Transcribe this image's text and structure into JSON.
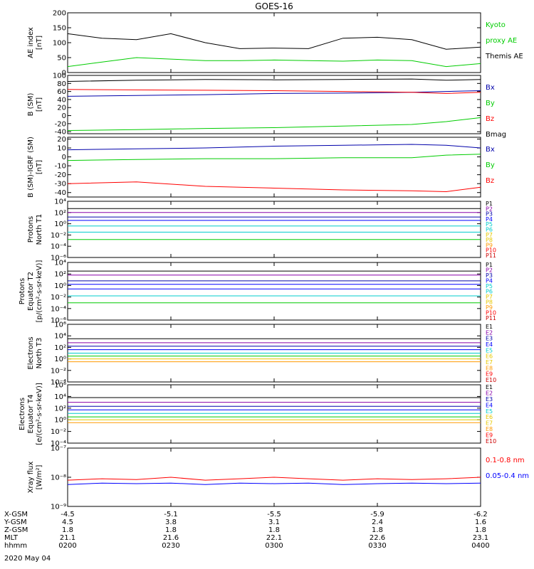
{
  "title": "GOES-16",
  "colors": {
    "black": "#000000",
    "red": "#ff0000",
    "green": "#00cc00",
    "blue": "#0000ff",
    "navy": "#0000aa",
    "cyan": "#00cccc",
    "yellow": "#e6c800",
    "orange": "#ff9900",
    "purple": "#8800aa",
    "darkred": "#cc0000"
  },
  "chart_data": [
    {
      "type": "line",
      "name": "ae",
      "ylabel": [
        "AE index",
        "[nT]"
      ],
      "ylim": [
        0,
        200
      ],
      "yticks": [
        0,
        50,
        100,
        150,
        200
      ],
      "ytick_labels": [
        "0",
        "50",
        "100",
        "150",
        "200"
      ],
      "x": [
        0,
        10,
        20,
        30,
        40,
        50,
        60,
        70,
        80,
        90,
        100,
        110,
        120
      ],
      "series": [
        {
          "name": "Themis AE",
          "color": "black",
          "values": [
            130,
            115,
            110,
            130,
            100,
            80,
            82,
            80,
            115,
            118,
            110,
            78,
            85
          ]
        },
        {
          "name": "Kyoto proxy AE",
          "color": "green",
          "values": [
            20,
            35,
            50,
            45,
            40,
            40,
            42,
            40,
            38,
            42,
            40,
            20,
            30
          ]
        }
      ],
      "legend": [
        {
          "text": "Kyoto",
          "color": "green"
        },
        {
          "text": "proxy AE",
          "color": "green"
        },
        {
          "text": "Themis AE",
          "color": "black"
        }
      ]
    },
    {
      "type": "line",
      "name": "bsm",
      "ylabel": [
        "B (SM)",
        "[nT]"
      ],
      "ylim": [
        -45,
        100
      ],
      "yticks": [
        -40,
        -20,
        0,
        20,
        40,
        60,
        80,
        100
      ],
      "ytick_labels": [
        "-40",
        "-20",
        "0",
        "20",
        "40",
        "60",
        "80",
        "100"
      ],
      "x": [
        0,
        20,
        40,
        60,
        80,
        100,
        110,
        120
      ],
      "series": [
        {
          "name": "Bmag",
          "color": "black",
          "values": [
            85,
            88,
            90,
            89,
            90,
            91,
            88,
            90
          ]
        },
        {
          "name": "Bx",
          "color": "navy",
          "values": [
            48,
            50,
            52,
            55,
            56,
            58,
            60,
            62
          ]
        },
        {
          "name": "Bz",
          "color": "red",
          "values": [
            65,
            64,
            63,
            62,
            60,
            58,
            55,
            58
          ]
        },
        {
          "name": "By",
          "color": "green",
          "values": [
            -37,
            -35,
            -32,
            -30,
            -26,
            -22,
            -15,
            -5
          ]
        }
      ],
      "legend": [
        {
          "text": "Bx",
          "color": "navy"
        },
        {
          "text": "By",
          "color": "green"
        },
        {
          "text": "Bz",
          "color": "red"
        },
        {
          "text": "Bmag",
          "color": "black"
        }
      ]
    },
    {
      "type": "line",
      "name": "bigrf",
      "ylabel": [
        "B (SM)-IGRF (SM)",
        "[nT]"
      ],
      "ylim": [
        -45,
        22
      ],
      "yticks": [
        -40,
        -30,
        -20,
        -10,
        0,
        10,
        20
      ],
      "ytick_labels": [
        "-40",
        "-30",
        "-20",
        "-10",
        "0",
        "10",
        "20"
      ],
      "x": [
        0,
        20,
        40,
        60,
        80,
        100,
        110,
        120
      ],
      "series": [
        {
          "name": "Bx",
          "color": "navy",
          "values": [
            8,
            9,
            10,
            12,
            13,
            14,
            13,
            10
          ]
        },
        {
          "name": "By",
          "color": "green",
          "values": [
            -4,
            -3,
            -2,
            -2,
            -1,
            -1,
            2,
            3
          ]
        },
        {
          "name": "Bz",
          "color": "red",
          "values": [
            -30,
            -28,
            -33,
            -35,
            -37,
            -38,
            -39,
            -34
          ]
        }
      ],
      "legend": [
        {
          "text": "Bx",
          "color": "navy"
        },
        {
          "text": "By",
          "color": "green"
        },
        {
          "text": "Bz",
          "color": "red"
        }
      ]
    },
    {
      "type": "line",
      "name": "pn",
      "yscale": "log",
      "ylabel": [
        "Protons",
        "North T1"
      ],
      "ylim": [
        -6,
        4
      ],
      "yticks": [
        -6,
        -4,
        -2,
        0,
        2,
        4
      ],
      "ytick_labels": [
        "10⁻⁶",
        "10⁻⁴",
        "10⁻²",
        "10⁰",
        "10²",
        "10⁴"
      ],
      "x": [
        0,
        120
      ],
      "series": [
        {
          "name": "P1",
          "color": "black",
          "values": [
            2.7,
            2.7
          ]
        },
        {
          "name": "P2",
          "color": "purple",
          "values": [
            2.0,
            2.0
          ]
        },
        {
          "name": "P3",
          "color": "navy",
          "values": [
            1.2,
            1.2
          ]
        },
        {
          "name": "P4",
          "color": "blue",
          "values": [
            0.6,
            0.6
          ]
        },
        {
          "name": "P5",
          "color": "cyan",
          "values": [
            -0.4,
            -0.4
          ]
        },
        {
          "name": "P6",
          "color": "cyan",
          "values": [
            -1.5,
            -1.5
          ]
        },
        {
          "name": "P7",
          "color": "green",
          "values": [
            -2.8,
            -2.8
          ]
        }
      ],
      "legend": [
        {
          "text": "P1",
          "color": "black"
        },
        {
          "text": "P2",
          "color": "purple"
        },
        {
          "text": "P3",
          "color": "navy"
        },
        {
          "text": "P4",
          "color": "blue"
        },
        {
          "text": "P5",
          "color": "cyan"
        },
        {
          "text": "P6",
          "color": "cyan"
        },
        {
          "text": "P7",
          "color": "yellow"
        },
        {
          "text": "P8",
          "color": "yellow"
        },
        {
          "text": "P9",
          "color": "orange"
        },
        {
          "text": "P10",
          "color": "red"
        },
        {
          "text": "P11",
          "color": "darkred"
        }
      ]
    },
    {
      "type": "line",
      "name": "pe",
      "yscale": "log",
      "ylabel": [
        "Protons",
        "Equator T2",
        "[p/(cm²-s-sr-keV)]"
      ],
      "ylim": [
        -6,
        4
      ],
      "yticks": [
        -6,
        -4,
        -2,
        0,
        2,
        4
      ],
      "ytick_labels": [
        "10⁻⁶",
        "10⁻⁴",
        "10⁻²",
        "10⁰",
        "10²",
        "10⁴"
      ],
      "x": [
        0,
        120
      ],
      "series": [
        {
          "name": "P1",
          "color": "black",
          "values": [
            2.5,
            2.5
          ]
        },
        {
          "name": "P2",
          "color": "purple",
          "values": [
            1.8,
            1.8
          ]
        },
        {
          "name": "P3",
          "color": "navy",
          "values": [
            0.8,
            0.8
          ]
        },
        {
          "name": "P4",
          "color": "blue",
          "values": [
            0.2,
            0.2
          ]
        },
        {
          "name": "P5",
          "color": "blue",
          "values": [
            -0.6,
            -0.6
          ]
        },
        {
          "name": "P6",
          "color": "cyan",
          "values": [
            -1.8,
            -1.8
          ]
        },
        {
          "name": "P7",
          "color": "green",
          "values": [
            -3.0,
            -3.0
          ]
        }
      ],
      "legend": [
        {
          "text": "P1",
          "color": "black"
        },
        {
          "text": "P2",
          "color": "purple"
        },
        {
          "text": "P3",
          "color": "navy"
        },
        {
          "text": "P4",
          "color": "blue"
        },
        {
          "text": "P5",
          "color": "cyan"
        },
        {
          "text": "P6",
          "color": "cyan"
        },
        {
          "text": "P7",
          "color": "yellow"
        },
        {
          "text": "P8",
          "color": "yellow"
        },
        {
          "text": "P9",
          "color": "orange"
        },
        {
          "text": "P10",
          "color": "red"
        },
        {
          "text": "P11",
          "color": "darkred"
        }
      ]
    },
    {
      "type": "line",
      "name": "en",
      "yscale": "log",
      "ylabel": [
        "Electrons",
        "North T3"
      ],
      "ylim": [
        -4,
        6
      ],
      "yticks": [
        -4,
        -2,
        0,
        2,
        4,
        6
      ],
      "ytick_labels": [
        "10⁻⁴",
        "10⁻²",
        "10⁰",
        "10²",
        "10⁴",
        "10⁶"
      ],
      "x": [
        0,
        120
      ],
      "series": [
        {
          "name": "E1",
          "color": "black",
          "values": [
            3.5,
            3.5
          ]
        },
        {
          "name": "E2",
          "color": "purple",
          "values": [
            2.8,
            2.8
          ]
        },
        {
          "name": "E3",
          "color": "navy",
          "values": [
            2.2,
            2.2
          ]
        },
        {
          "name": "E4",
          "color": "blue",
          "values": [
            1.6,
            1.6
          ]
        },
        {
          "name": "E5",
          "color": "cyan",
          "values": [
            1.0,
            1.0
          ]
        },
        {
          "name": "E6",
          "color": "green",
          "values": [
            0.5,
            0.5
          ]
        },
        {
          "name": "E7",
          "color": "yellow",
          "values": [
            0.0,
            0.0
          ]
        },
        {
          "name": "E8",
          "color": "orange",
          "values": [
            -0.5,
            -0.5
          ]
        }
      ],
      "legend": [
        {
          "text": "E1",
          "color": "black"
        },
        {
          "text": "E2",
          "color": "purple"
        },
        {
          "text": "E3",
          "color": "navy"
        },
        {
          "text": "E4",
          "color": "blue"
        },
        {
          "text": "E5",
          "color": "cyan"
        },
        {
          "text": "E6",
          "color": "yellow"
        },
        {
          "text": "E7",
          "color": "yellow"
        },
        {
          "text": "E8",
          "color": "orange"
        },
        {
          "text": "E9",
          "color": "red"
        },
        {
          "text": "E10",
          "color": "darkred"
        }
      ]
    },
    {
      "type": "line",
      "name": "ee",
      "yscale": "log",
      "ylabel": [
        "Electrons",
        "Equator T4",
        "[e/(cm²-s-sr-keV)]"
      ],
      "ylim": [
        -4,
        6
      ],
      "yticks": [
        -4,
        -2,
        0,
        2,
        4,
        6
      ],
      "ytick_labels": [
        "10⁻⁴",
        "10⁻²",
        "10⁰",
        "10²",
        "10⁴",
        "10⁶"
      ],
      "x": [
        0,
        120
      ],
      "series": [
        {
          "name": "E1",
          "color": "black",
          "values": [
            3.8,
            3.8
          ]
        },
        {
          "name": "E2",
          "color": "purple",
          "values": [
            3.0,
            3.0
          ]
        },
        {
          "name": "E3",
          "color": "navy",
          "values": [
            2.3,
            2.3
          ]
        },
        {
          "name": "E4",
          "color": "blue",
          "values": [
            1.7,
            1.7
          ]
        },
        {
          "name": "E5",
          "color": "cyan",
          "values": [
            1.1,
            1.1
          ]
        },
        {
          "name": "E6",
          "color": "green",
          "values": [
            0.5,
            0.5
          ]
        },
        {
          "name": "E7",
          "color": "yellow",
          "values": [
            0.0,
            0.0
          ]
        },
        {
          "name": "E8",
          "color": "orange",
          "values": [
            -0.5,
            -0.5
          ]
        }
      ],
      "legend": [
        {
          "text": "E1",
          "color": "black"
        },
        {
          "text": "E2",
          "color": "purple"
        },
        {
          "text": "E3",
          "color": "navy"
        },
        {
          "text": "E4",
          "color": "blue"
        },
        {
          "text": "E5",
          "color": "cyan"
        },
        {
          "text": "E6",
          "color": "yellow"
        },
        {
          "text": "E7",
          "color": "yellow"
        },
        {
          "text": "E8",
          "color": "orange"
        },
        {
          "text": "E9",
          "color": "red"
        },
        {
          "text": "E10",
          "color": "darkred"
        }
      ]
    },
    {
      "type": "line",
      "name": "xray",
      "yscale": "log",
      "ylabel": [
        "Xray flux",
        "[W/m²]"
      ],
      "ylim": [
        -9,
        -7
      ],
      "yticks": [
        -9,
        -8,
        -7
      ],
      "ytick_labels": [
        "10⁻⁹",
        "10⁻⁸",
        "10⁻⁷"
      ],
      "x": [
        0,
        10,
        20,
        30,
        40,
        50,
        60,
        70,
        80,
        90,
        100,
        110,
        120
      ],
      "series": [
        {
          "name": "0.1-0.8 nm",
          "color": "red",
          "values": [
            -8.1,
            -8.05,
            -8.08,
            -8.0,
            -8.1,
            -8.05,
            -8.0,
            -8.05,
            -8.1,
            -8.05,
            -8.08,
            -8.05,
            -8.0
          ]
        },
        {
          "name": "0.05-0.4 nm",
          "color": "blue",
          "values": [
            -8.25,
            -8.2,
            -8.22,
            -8.2,
            -8.25,
            -8.2,
            -8.22,
            -8.2,
            -8.25,
            -8.22,
            -8.2,
            -8.22,
            -8.2
          ]
        }
      ],
      "legend": [
        {
          "text": "0.1-0.8 nm",
          "color": "red"
        },
        {
          "text": "0.05-0.4 nm",
          "color": "blue"
        }
      ]
    }
  ],
  "xaxis": {
    "row_labels": [
      "X-GSM",
      "Y-GSM",
      "Z-GSM",
      "MLT",
      "hhmm"
    ],
    "ticks": [
      {
        "x": 0,
        "values": [
          "-4.5",
          "4.5",
          "1.8",
          "21.1",
          "0200"
        ]
      },
      {
        "x": 30,
        "values": [
          "-5.1",
          "3.8",
          "1.8",
          "21.6",
          "0230"
        ]
      },
      {
        "x": 60,
        "values": [
          "-5.5",
          "3.1",
          "1.8",
          "22.1",
          "0300"
        ]
      },
      {
        "x": 90,
        "values": [
          "-5.9",
          "2.4",
          "1.8",
          "22.6",
          "0330"
        ]
      },
      {
        "x": 120,
        "values": [
          "-6.2",
          "1.6",
          "1.8",
          "23.1",
          "0400"
        ]
      }
    ],
    "date": "2020 May 04",
    "xlim": [
      0,
      120
    ]
  }
}
